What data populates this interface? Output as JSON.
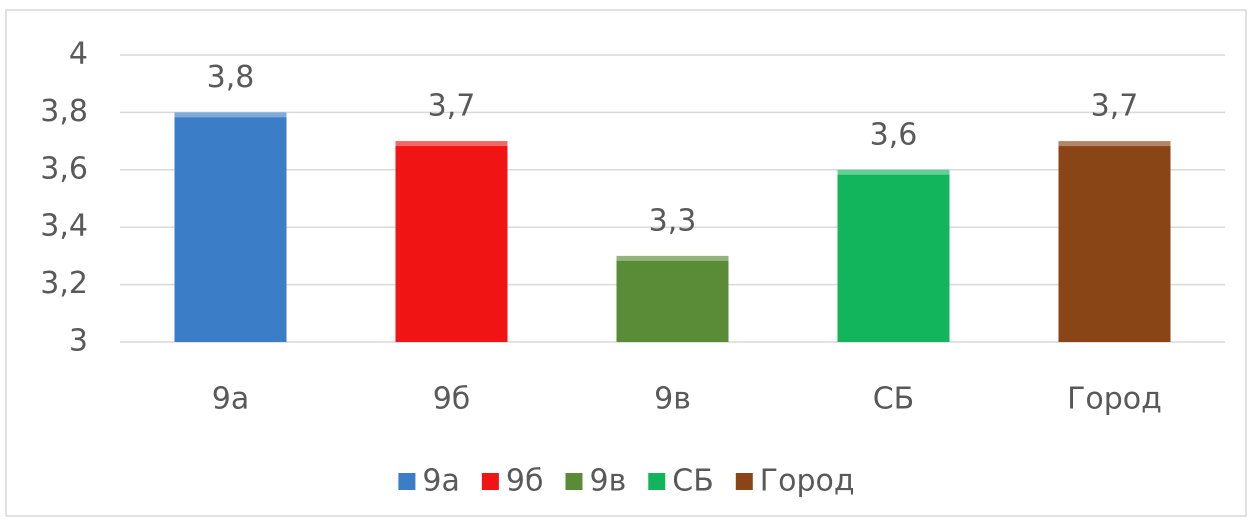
{
  "chart_data": {
    "type": "bar",
    "categories": [
      "9а",
      "9б",
      "9в",
      "СБ",
      "Город"
    ],
    "values": [
      3.8,
      3.7,
      3.3,
      3.6,
      3.7
    ],
    "value_labels": [
      "3,8",
      "3,7",
      "3,3",
      "3,6",
      "3,7"
    ],
    "colors": [
      "#3b7dc6",
      "#f01414",
      "#5a8c37",
      "#12b55c",
      "#8a4516"
    ],
    "ylim": [
      3,
      4
    ],
    "yticks": [
      3,
      {
        "value": 3.2,
        "label": "3,2"
      },
      {
        "value": 3.4,
        "label": "3,4"
      },
      {
        "value": 3.6,
        "label": "3,6"
      },
      {
        "value": 3.8,
        "label": "3,8"
      },
      4
    ],
    "grid": true,
    "legend": "bottom"
  }
}
